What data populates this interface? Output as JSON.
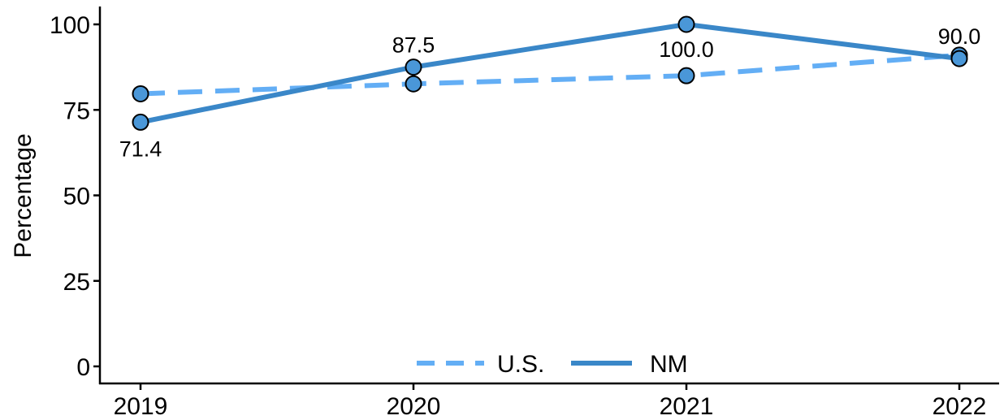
{
  "chart_data": {
    "type": "line",
    "x": [
      "2019",
      "2020",
      "2021",
      "2022"
    ],
    "series": [
      {
        "name": "U.S.",
        "values": [
          79.7,
          82.6,
          85.0,
          91.0
        ],
        "color": "#63aef5",
        "line_style": "dashed"
      },
      {
        "name": "NM",
        "values": [
          71.4,
          87.5,
          100.0,
          90.0
        ],
        "color": "#3a87c8",
        "line_style": "solid",
        "data_labels": [
          "71.4",
          "87.5",
          "100.0",
          "90.0"
        ]
      }
    ],
    "ylabel": "Percentage",
    "xlabel": "",
    "ylim": [
      0,
      100
    ],
    "yticks": [
      0,
      25,
      50,
      75,
      100
    ],
    "grid": false,
    "legend_position": "bottom-center",
    "marker_fill": "#4a97d8",
    "marker_edge": "#000000"
  }
}
